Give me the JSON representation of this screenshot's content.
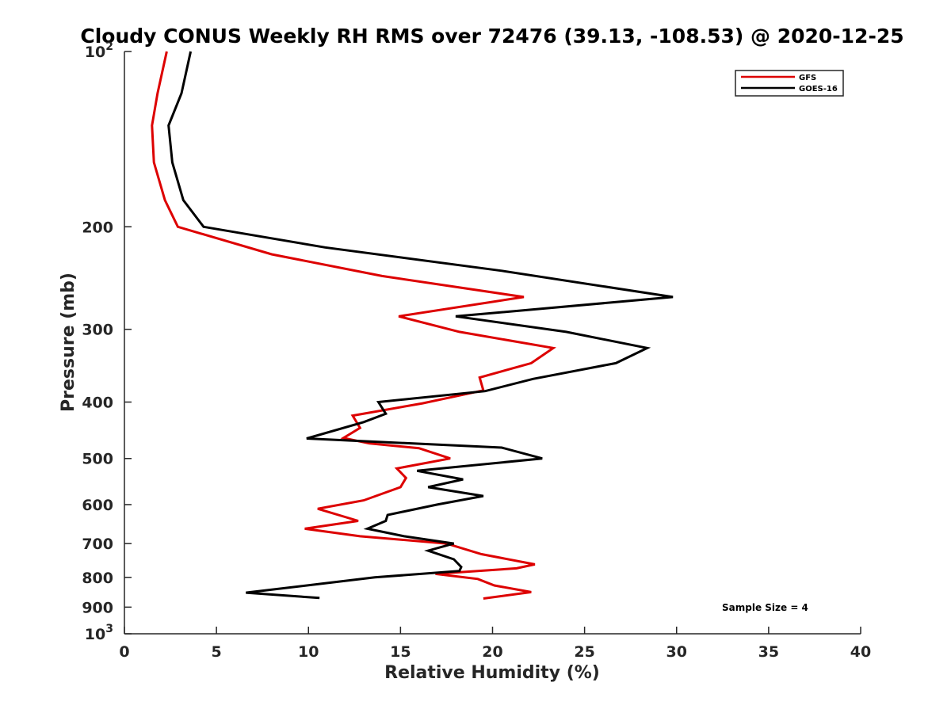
{
  "chart_data": {
    "type": "line",
    "title": "Cloudy CONUS Weekly RH RMS over 72476 (39.13, -108.53) @ 2020-12-25",
    "xlabel": "Relative Humidity (%)",
    "ylabel": "Pressure (mb)",
    "xlim": [
      0,
      40
    ],
    "ylim": [
      100,
      1000
    ],
    "yscale": "log",
    "y_reversed": true,
    "grid": false,
    "legend_position": "top-right",
    "x_ticks": [
      {
        "value": 0,
        "label": "0"
      },
      {
        "value": 5,
        "label": "5"
      },
      {
        "value": 10,
        "label": "10"
      },
      {
        "value": 15,
        "label": "15"
      },
      {
        "value": 20,
        "label": "20"
      },
      {
        "value": 25,
        "label": "25"
      },
      {
        "value": 30,
        "label": "30"
      },
      {
        "value": 35,
        "label": "35"
      },
      {
        "value": 40,
        "label": "40"
      }
    ],
    "y_ticks": [
      {
        "value": 100,
        "base": "10",
        "exp": "2"
      },
      {
        "value": 200,
        "base": "200",
        "exp": ""
      },
      {
        "value": 300,
        "base": "300",
        "exp": ""
      },
      {
        "value": 400,
        "base": "400",
        "exp": ""
      },
      {
        "value": 500,
        "base": "500",
        "exp": ""
      },
      {
        "value": 600,
        "base": "600",
        "exp": ""
      },
      {
        "value": 700,
        "base": "700",
        "exp": ""
      },
      {
        "value": 800,
        "base": "800",
        "exp": ""
      },
      {
        "value": 900,
        "base": "900",
        "exp": ""
      },
      {
        "value": 1000,
        "base": "10",
        "exp": "3"
      }
    ],
    "series": [
      {
        "name": "GFS",
        "color": "#dd0000",
        "points": [
          [
            2.3,
            100
          ],
          [
            1.8,
            118
          ],
          [
            1.5,
            134
          ],
          [
            1.6,
            155
          ],
          [
            2.2,
            180
          ],
          [
            2.9,
            200
          ],
          [
            8.0,
            223
          ],
          [
            14.0,
            243
          ],
          [
            21.7,
            264
          ],
          [
            14.9,
            285
          ],
          [
            18.2,
            303
          ],
          [
            23.3,
            323
          ],
          [
            22.1,
            343
          ],
          [
            19.3,
            363
          ],
          [
            19.5,
            382
          ],
          [
            16.2,
            402
          ],
          [
            12.4,
            422
          ],
          [
            12.8,
            443
          ],
          [
            11.9,
            461
          ],
          [
            13.3,
            471
          ],
          [
            16.0,
            480
          ],
          [
            17.7,
            500
          ],
          [
            14.8,
            520
          ],
          [
            15.3,
            540
          ],
          [
            15.0,
            560
          ],
          [
            13.0,
            590
          ],
          [
            10.5,
            610
          ],
          [
            12.7,
            640
          ],
          [
            9.8,
            660
          ],
          [
            12.8,
            680
          ],
          [
            17.5,
            700
          ],
          [
            19.4,
            730
          ],
          [
            22.3,
            760
          ],
          [
            21.3,
            772
          ],
          [
            16.9,
            789
          ],
          [
            19.2,
            805
          ],
          [
            20.1,
            826
          ],
          [
            22.1,
            848
          ],
          [
            19.5,
            870
          ]
        ]
      },
      {
        "name": "GOES-16",
        "color": "#000000",
        "points": [
          [
            3.6,
            100
          ],
          [
            3.1,
            118
          ],
          [
            2.4,
            134
          ],
          [
            2.6,
            155
          ],
          [
            3.2,
            180
          ],
          [
            4.3,
            200
          ],
          [
            10.9,
            217
          ],
          [
            20.5,
            238
          ],
          [
            29.8,
            264
          ],
          [
            18.0,
            285
          ],
          [
            24.0,
            303
          ],
          [
            28.4,
            323
          ],
          [
            26.7,
            343
          ],
          [
            22.2,
            365
          ],
          [
            19.6,
            383
          ],
          [
            13.8,
            400
          ],
          [
            14.2,
            419
          ],
          [
            13.0,
            433
          ],
          [
            9.9,
            462
          ],
          [
            20.5,
            479
          ],
          [
            22.7,
            500
          ],
          [
            15.9,
            525
          ],
          [
            18.4,
            543
          ],
          [
            16.5,
            560
          ],
          [
            19.5,
            580
          ],
          [
            17.0,
            600
          ],
          [
            14.3,
            625
          ],
          [
            14.2,
            640
          ],
          [
            13.2,
            660
          ],
          [
            15.2,
            680
          ],
          [
            17.9,
            700
          ],
          [
            16.5,
            720
          ],
          [
            17.9,
            745
          ],
          [
            18.3,
            768
          ],
          [
            18.2,
            780
          ],
          [
            13.6,
            800
          ],
          [
            10.9,
            819
          ],
          [
            6.6,
            850
          ],
          [
            10.6,
            868
          ]
        ]
      }
    ],
    "annotation": "Sample Size = 4"
  }
}
